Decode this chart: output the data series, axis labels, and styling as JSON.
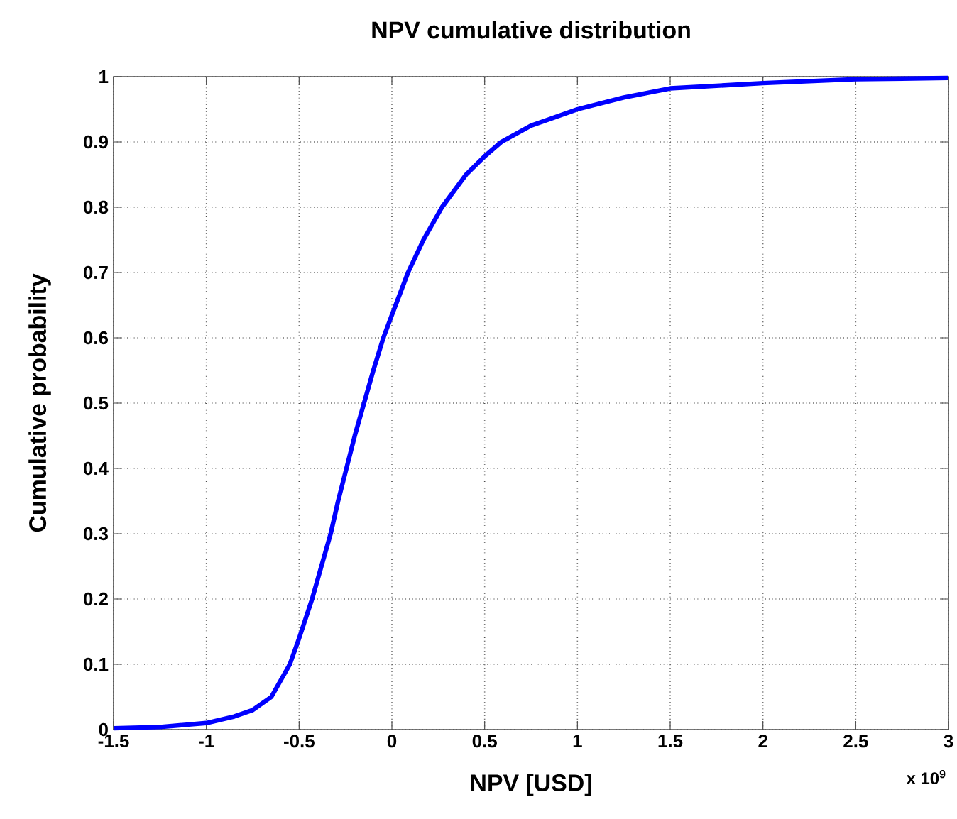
{
  "chart_data": {
    "type": "line",
    "title": "NPV cumulative distribution",
    "xlabel": "NPV [USD]",
    "ylabel": "Cumulative probability",
    "annotations": [
      "x 10$^{9}$"
    ],
    "xlim": [
      -1.5,
      3
    ],
    "ylim": [
      0,
      1
    ],
    "xticks": [
      -1.5,
      -1,
      -0.5,
      0,
      0.5,
      1,
      1.5,
      2,
      2.5,
      3
    ],
    "yticks": [
      0,
      0.1,
      0.2,
      0.3,
      0.4,
      0.5,
      0.6,
      0.7,
      0.8,
      0.9,
      1
    ],
    "grid": true,
    "series": [
      {
        "color": "#0000ff",
        "x": [
          -1.5,
          -1.25,
          -1.0,
          -0.85,
          -0.75,
          -0.65,
          -0.55,
          -0.5,
          -0.43,
          -0.38,
          -0.33,
          -0.29,
          -0.245,
          -0.2,
          -0.15,
          -0.1,
          -0.046,
          0,
          0.087,
          0.17,
          0.27,
          0.4,
          0.5,
          0.59,
          0.75,
          1.0,
          1.25,
          1.5,
          2.0,
          2.5,
          3.0
        ],
        "values": [
          0.002,
          0.004,
          0.01,
          0.02,
          0.03,
          0.05,
          0.1,
          0.14,
          0.2,
          0.25,
          0.3,
          0.35,
          0.4,
          0.45,
          0.5,
          0.55,
          0.6,
          0.635,
          0.7,
          0.75,
          0.8,
          0.85,
          0.878,
          0.9,
          0.925,
          0.95,
          0.968,
          0.982,
          0.99,
          0.996,
          0.998
        ]
      }
    ]
  }
}
